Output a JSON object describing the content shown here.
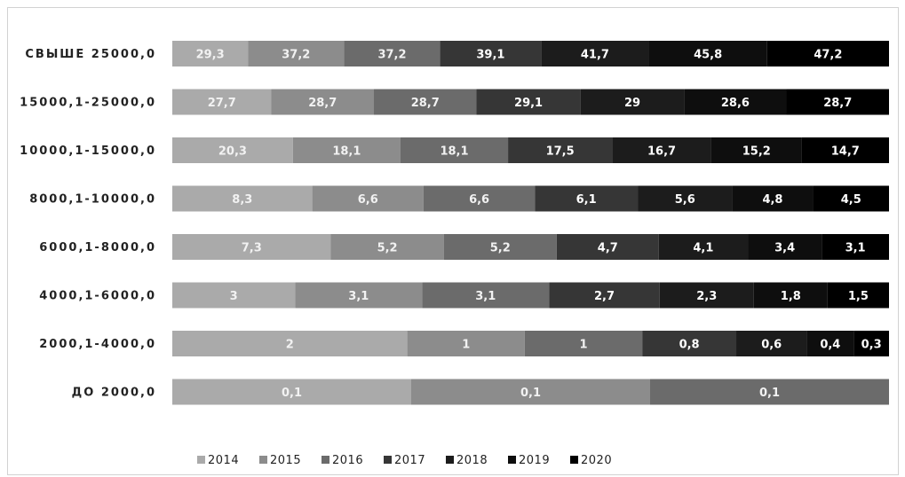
{
  "chart_data": {
    "type": "bar",
    "orientation": "horizontal",
    "stacked": "100%",
    "title": "",
    "xlabel": "",
    "ylabel": "",
    "grid": false,
    "legend_position": "bottom",
    "categories": [
      "СВЫШЕ 25000,0",
      "15000,1-25000,0",
      "10000,1-15000,0",
      "8000,1-10000,0",
      "6000,1-8000,0",
      "4000,1-6000,0",
      "2000,1-4000,0",
      "ДО 2000,0"
    ],
    "series": [
      {
        "name": "2014",
        "color": "#aaaaaa",
        "values": [
          29.3,
          27.7,
          20.3,
          8.3,
          7.3,
          3,
          2,
          0.1
        ],
        "labels": [
          "29,3",
          "27,7",
          "20,3",
          "8,3",
          "7,3",
          "3",
          "2",
          "0,1"
        ]
      },
      {
        "name": "2015",
        "color": "#8c8c8c",
        "values": [
          37.2,
          28.7,
          18.1,
          6.6,
          5.2,
          3.1,
          1,
          0.1
        ],
        "labels": [
          "37,2",
          "28,7",
          "18,1",
          "6,6",
          "5,2",
          "3,1",
          "1",
          "0,1"
        ]
      },
      {
        "name": "2016",
        "color": "#6b6b6b",
        "values": [
          37.2,
          28.7,
          18.1,
          6.6,
          5.2,
          3.1,
          1,
          0.1
        ],
        "labels": [
          "37,2",
          "28,7",
          "18,1",
          "6,6",
          "5,2",
          "3,1",
          "1",
          "0,1"
        ]
      },
      {
        "name": "2017",
        "color": "#363636",
        "values": [
          39.1,
          29.1,
          17.5,
          6.1,
          4.7,
          2.7,
          0.8,
          0
        ],
        "labels": [
          "39,1",
          "29,1",
          "17,5",
          "6,1",
          "4,7",
          "2,7",
          "0,8",
          "0"
        ]
      },
      {
        "name": "2018",
        "color": "#1c1c1c",
        "values": [
          41.7,
          29,
          16.7,
          5.6,
          4.1,
          2.3,
          0.6,
          0
        ],
        "labels": [
          "41,7",
          "29",
          "16,7",
          "5,6",
          "4,1",
          "2,3",
          "0,6",
          "0"
        ]
      },
      {
        "name": "2019",
        "color": "#0e0e0e",
        "values": [
          45.8,
          28.6,
          15.2,
          4.8,
          3.4,
          1.8,
          0.4,
          0
        ],
        "labels": [
          "45,8",
          "28,6",
          "15,2",
          "4,8",
          "3,4",
          "1,8",
          "0,4",
          "0"
        ]
      },
      {
        "name": "2020",
        "color": "#000000",
        "values": [
          47.2,
          28.7,
          14.7,
          4.5,
          3.1,
          1.5,
          0.3,
          0
        ],
        "labels": [
          "47,2",
          "28,7",
          "14,7",
          "4,5",
          "3,1",
          "1,5",
          "0,3",
          "0"
        ]
      }
    ]
  }
}
